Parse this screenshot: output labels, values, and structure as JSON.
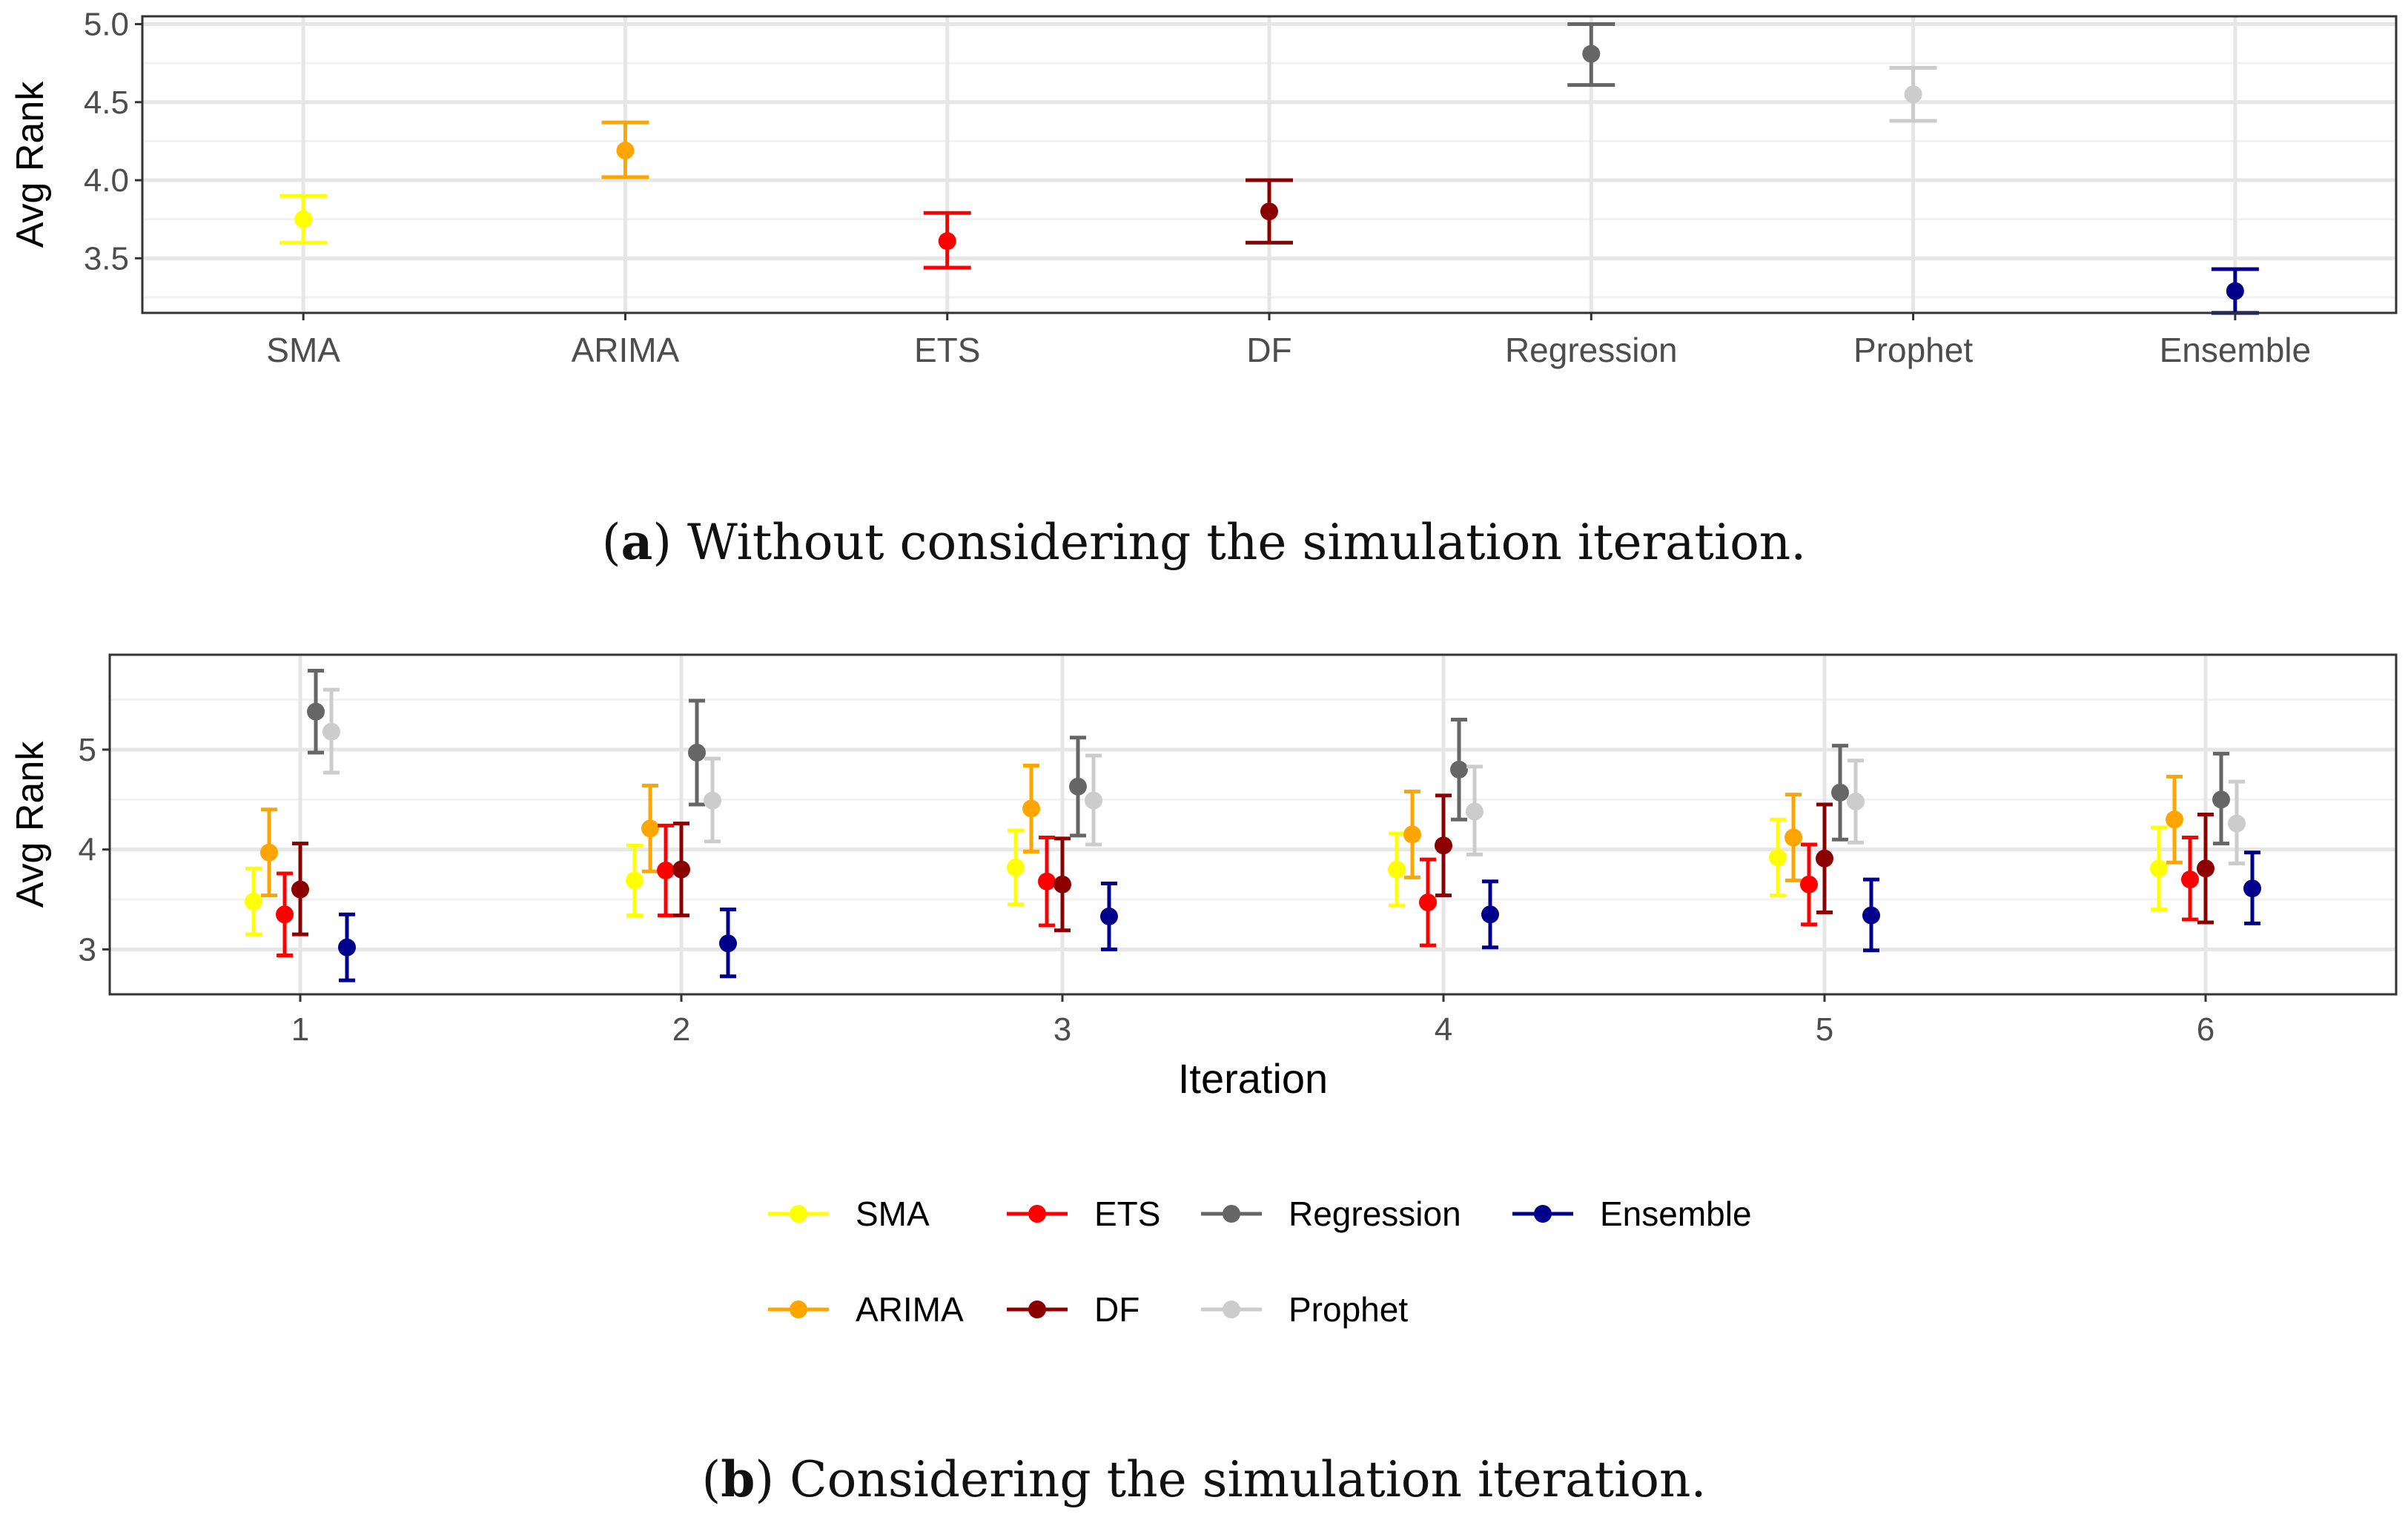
{
  "figure": {
    "caption_a": {
      "tag": "a",
      "text": "Without considering the simulation iteration."
    },
    "caption_b": {
      "tag": "b",
      "text": "Considering the simulation iteration."
    }
  },
  "chart_data": [
    {
      "type": "scatter",
      "subtype": "errorbar",
      "xlabel": "",
      "ylabel": "Avg Rank",
      "ylim": [
        3.15,
        5.05
      ],
      "yticks": [
        3.5,
        4.0,
        4.5,
        5.0
      ],
      "ytick_labels": [
        "3.5",
        "4.0",
        "4.5",
        "5.0"
      ],
      "grid": true,
      "categories": [
        "SMA",
        "ARIMA",
        "ETS",
        "DF",
        "Regression",
        "Prophet",
        "Ensemble"
      ],
      "series": [
        {
          "name": "SMA",
          "color": "#ffff00",
          "mean": 3.75,
          "lower": 3.6,
          "upper": 3.9
        },
        {
          "name": "ARIMA",
          "color": "#ffa500",
          "mean": 4.19,
          "lower": 4.02,
          "upper": 4.37
        },
        {
          "name": "ETS",
          "color": "#ff0000",
          "mean": 3.61,
          "lower": 3.44,
          "upper": 3.79
        },
        {
          "name": "DF",
          "color": "#8b0000",
          "mean": 3.8,
          "lower": 3.6,
          "upper": 4.0
        },
        {
          "name": "Regression",
          "color": "#666666",
          "mean": 4.81,
          "lower": 4.61,
          "upper": 5.0
        },
        {
          "name": "Prophet",
          "color": "#cccccc",
          "mean": 4.55,
          "lower": 4.38,
          "upper": 4.72
        },
        {
          "name": "Ensemble",
          "color": "#00008b",
          "mean": 3.29,
          "lower": 3.15,
          "upper": 3.43
        }
      ]
    },
    {
      "type": "scatter",
      "subtype": "errorbar",
      "xlabel": "Iteration",
      "ylabel": "Avg Rank",
      "ylim": [
        2.55,
        5.95
      ],
      "yticks": [
        3,
        4,
        5
      ],
      "ytick_labels": [
        "3",
        "4",
        "5"
      ],
      "categories": [
        "1",
        "2",
        "3",
        "4",
        "5",
        "6"
      ],
      "grid": true,
      "legend": {
        "placement": "bottom",
        "order": [
          "SMA",
          "ARIMA",
          "ETS",
          "DF",
          "Regression",
          "Prophet",
          "Ensemble"
        ]
      },
      "series": [
        {
          "name": "SMA",
          "color": "#ffff00",
          "mean": [
            3.48,
            3.69,
            3.82,
            3.8,
            3.92,
            3.81
          ],
          "lower": [
            3.15,
            3.34,
            3.45,
            3.44,
            3.54,
            3.4
          ],
          "upper": [
            3.81,
            4.04,
            4.19,
            4.16,
            4.3,
            4.22
          ]
        },
        {
          "name": "ARIMA",
          "color": "#ffa500",
          "mean": [
            3.97,
            4.21,
            4.41,
            4.15,
            4.12,
            4.3
          ],
          "lower": [
            3.54,
            3.78,
            3.98,
            3.72,
            3.69,
            3.87
          ],
          "upper": [
            4.4,
            4.64,
            4.84,
            4.58,
            4.55,
            4.73
          ]
        },
        {
          "name": "ETS",
          "color": "#ff0000",
          "mean": [
            3.35,
            3.79,
            3.68,
            3.47,
            3.65,
            3.7
          ],
          "lower": [
            2.94,
            3.34,
            3.24,
            3.04,
            3.25,
            3.3
          ],
          "upper": [
            3.76,
            4.24,
            4.12,
            3.9,
            4.05,
            4.12
          ]
        },
        {
          "name": "DF",
          "color": "#8b0000",
          "mean": [
            3.6,
            3.8,
            3.65,
            4.04,
            3.91,
            3.81
          ],
          "lower": [
            3.15,
            3.34,
            3.19,
            3.54,
            3.37,
            3.27
          ],
          "upper": [
            4.06,
            4.26,
            4.11,
            4.54,
            4.45,
            4.35
          ]
        },
        {
          "name": "Regression",
          "color": "#666666",
          "mean": [
            5.38,
            4.97,
            4.63,
            4.8,
            4.57,
            4.5
          ],
          "lower": [
            4.97,
            4.45,
            4.14,
            4.3,
            4.1,
            4.06
          ],
          "upper": [
            5.79,
            5.49,
            5.12,
            5.3,
            5.04,
            4.96
          ]
        },
        {
          "name": "Prophet",
          "color": "#cccccc",
          "mean": [
            5.18,
            4.49,
            4.49,
            4.38,
            4.48,
            4.26
          ],
          "lower": [
            4.77,
            4.08,
            4.05,
            3.95,
            4.07,
            3.86
          ],
          "upper": [
            5.6,
            4.91,
            4.94,
            4.83,
            4.89,
            4.68
          ]
        },
        {
          "name": "Ensemble",
          "color": "#00008b",
          "mean": [
            3.02,
            3.06,
            3.33,
            3.35,
            3.34,
            3.61
          ],
          "lower": [
            2.69,
            2.73,
            3.0,
            3.02,
            2.99,
            3.26
          ],
          "upper": [
            3.35,
            3.4,
            3.66,
            3.68,
            3.7,
            3.97
          ]
        }
      ]
    }
  ]
}
